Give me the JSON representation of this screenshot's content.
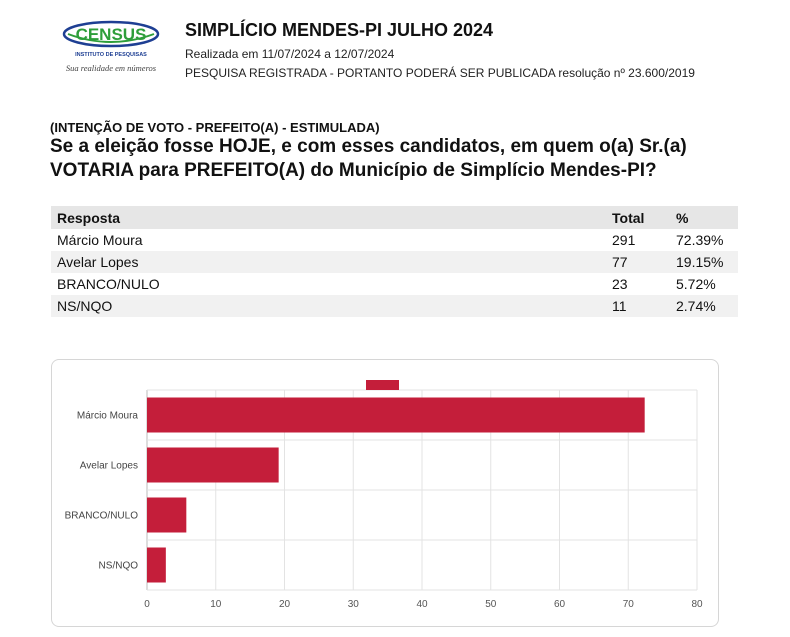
{
  "header": {
    "logo_word": "CENSUS",
    "logo_sub": "INSTITUTO DE PESQUISAS",
    "logo_tagline": "Sua realidade em números",
    "title": "SIMPLÍCIO MENDES-PI JULHO 2024",
    "period": "Realizada em 11/07/2024 a 12/07/2024",
    "registration": "PESQUISA REGISTRADA - PORTANTO PODERÁ SER PUBLICADA resolução nº 23.600/2019"
  },
  "question": {
    "category": "(INTENÇÃO DE VOTO - PREFEITO(A) - ESTIMULADA)",
    "text": "Se a eleição fosse HOJE, e com esses candidatos, em quem o(a) Sr.(a) VOTARIA para PREFEITO(A) do Município de Simplício Mendes-PI?"
  },
  "table": {
    "headers": {
      "answer": "Resposta",
      "total": "Total",
      "percent": "%"
    },
    "rows": [
      {
        "answer": "Márcio Moura",
        "total": "291",
        "percent": "72.39%"
      },
      {
        "answer": "Avelar Lopes",
        "total": "77",
        "percent": "19.15%"
      },
      {
        "answer": "BRANCO/NULO",
        "total": "23",
        "percent": "5.72%"
      },
      {
        "answer": "NS/NQO",
        "total": "11",
        "percent": "2.74%"
      }
    ]
  },
  "chart_data": {
    "type": "bar",
    "orientation": "horizontal",
    "categories": [
      "Márcio Moura",
      "Avelar Lopes",
      "BRANCO/NULO",
      "NS/NQO"
    ],
    "values": [
      72.39,
      19.15,
      5.72,
      2.74
    ],
    "xlim": [
      0,
      80
    ],
    "xticks": [
      0,
      10,
      20,
      30,
      40,
      50,
      60,
      70,
      80
    ],
    "grid": true,
    "legend": "top-center, swatch only",
    "bar_color": "#c41e3a",
    "title": "",
    "xlabel": "",
    "ylabel": ""
  }
}
